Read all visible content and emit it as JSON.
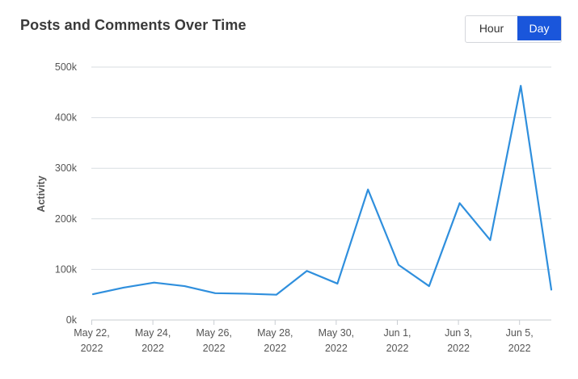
{
  "widget": {
    "title": "Posts and Comments Over Time",
    "toggle": {
      "options": [
        "Hour",
        "Day"
      ],
      "selected": "Day"
    }
  },
  "colors": {
    "line": "#2f8fdd",
    "active_toggle": "#1a56db",
    "grid": "#d9dde2"
  },
  "chart_data": {
    "type": "line",
    "title": "Posts and Comments Over Time",
    "xlabel": "",
    "ylabel": "Activity",
    "ylim": [
      0,
      500000
    ],
    "yticks": [
      0,
      100000,
      200000,
      300000,
      400000,
      500000
    ],
    "ytick_labels": [
      "0k",
      "100k",
      "200k",
      "300k",
      "400k",
      "500k"
    ],
    "xtick_labels": [
      [
        "May 22,",
        "2022"
      ],
      [
        "May 24,",
        "2022"
      ],
      [
        "May 26,",
        "2022"
      ],
      [
        "May 28,",
        "2022"
      ],
      [
        "May 30,",
        "2022"
      ],
      [
        "Jun 1,",
        "2022"
      ],
      [
        "Jun 3,",
        "2022"
      ],
      [
        "Jun 5,",
        "2022"
      ]
    ],
    "grid": true,
    "legend": "none",
    "series": [
      {
        "x": [
          "2022-05-22",
          "2022-05-23",
          "2022-05-24",
          "2022-05-25",
          "2022-05-26",
          "2022-05-27",
          "2022-05-28",
          "2022-05-29",
          "2022-05-30",
          "2022-05-31",
          "2022-06-01",
          "2022-06-02",
          "2022-06-03",
          "2022-06-04",
          "2022-06-05",
          "2022-06-06"
        ],
        "values": [
          51000,
          64000,
          74000,
          67000,
          53000,
          52000,
          50000,
          97000,
          72000,
          258000,
          109000,
          67000,
          231000,
          158000,
          463000,
          60000
        ]
      }
    ]
  }
}
